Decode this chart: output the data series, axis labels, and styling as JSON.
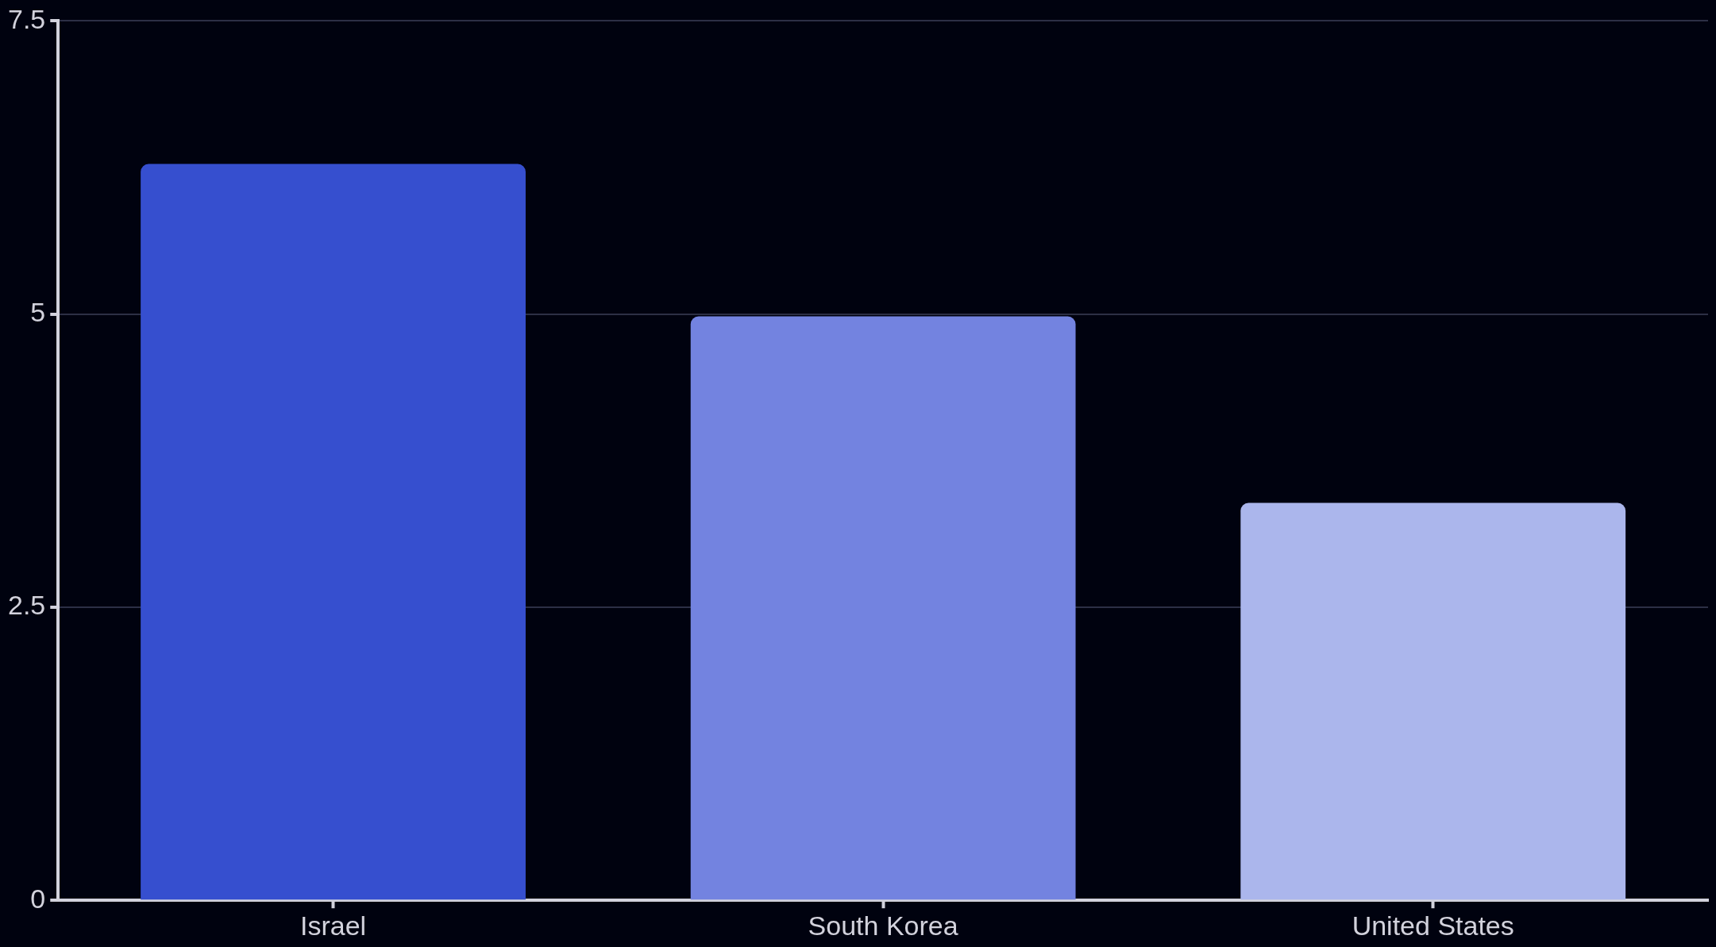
{
  "chart_data": {
    "type": "bar",
    "categories": [
      "Israel",
      "South Korea",
      "United States"
    ],
    "values": [
      6.28,
      4.98,
      3.39
    ],
    "colors": [
      "#364fcf",
      "#7383e0",
      "#abb6ec"
    ],
    "ylim": [
      0,
      7.5
    ],
    "yticks": [
      0,
      2.5,
      5,
      7.5
    ],
    "grid": "y",
    "legend": false
  }
}
